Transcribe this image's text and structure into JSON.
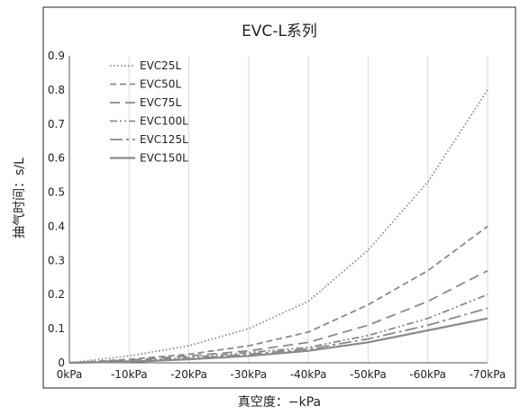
{
  "chart_data": {
    "type": "line",
    "title": "EVC-L系列",
    "xlabel": "真空度：−kPa",
    "ylabel": "抽气时间：s/L",
    "categories": [
      "0kPa",
      "-10kPa",
      "-20kPa",
      "-30kPa",
      "-40kPa",
      "-50kPa",
      "-60kPa",
      "-70kPa"
    ],
    "ylim": [
      0,
      0.9
    ],
    "yticks": [
      "0",
      "0.1",
      "0.2",
      "0.3",
      "0.4",
      "0.5",
      "0.6",
      "0.7",
      "0.8",
      "0.9"
    ],
    "grid": "vertical",
    "legend_position": "top-left",
    "series": [
      {
        "name": "EVC25L",
        "dash": "dotted",
        "values": [
          0,
          0.02,
          0.05,
          0.1,
          0.18,
          0.33,
          0.53,
          0.8
        ]
      },
      {
        "name": "EVC50L",
        "dash": "dashed",
        "values": [
          0,
          0.01,
          0.025,
          0.05,
          0.09,
          0.17,
          0.27,
          0.4
        ]
      },
      {
        "name": "EVC75L",
        "dash": "long-dash",
        "values": [
          0,
          0.008,
          0.02,
          0.035,
          0.06,
          0.11,
          0.18,
          0.27
        ]
      },
      {
        "name": "EVC100L",
        "dash": "dash-dot-dot",
        "values": [
          0,
          0.005,
          0.015,
          0.03,
          0.045,
          0.08,
          0.13,
          0.2
        ]
      },
      {
        "name": "EVC125L",
        "dash": "long-dash-dot",
        "values": [
          0,
          0.004,
          0.012,
          0.025,
          0.04,
          0.07,
          0.11,
          0.16
        ]
      },
      {
        "name": "EVC150L",
        "dash": "solid",
        "values": [
          0,
          0.003,
          0.01,
          0.02,
          0.035,
          0.06,
          0.095,
          0.13
        ]
      }
    ],
    "colors": {
      "line": "#8a8a8a",
      "grid": "#d9d9d9",
      "frame": "#222222"
    }
  }
}
